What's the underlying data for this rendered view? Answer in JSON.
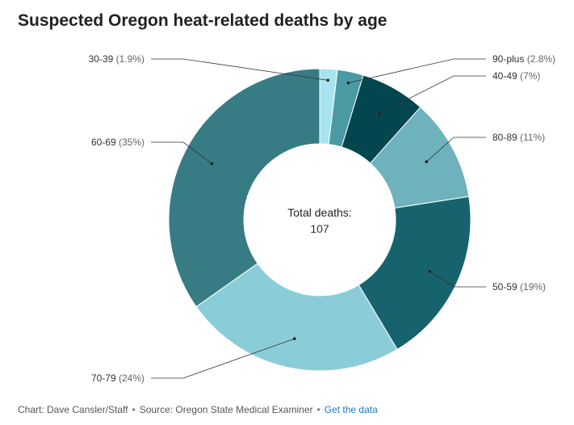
{
  "title": "Suspected Oregon heat-related deaths by age",
  "center": {
    "label": "Total deaths:",
    "value": "107"
  },
  "footer": {
    "credit": "Chart: Dave Cansler/Staff",
    "source": "Source: Oregon State Medical Examiner",
    "link_label": "Get the data",
    "separator": "•"
  },
  "chart_data": {
    "type": "pie",
    "donut": true,
    "total": 107,
    "slices": [
      {
        "label": "30-39",
        "pct_text": "(1.9%)",
        "value": 1.9,
        "color": "#a8e3f0",
        "label_side": "left"
      },
      {
        "label": "90-plus",
        "pct_text": "(2.8%)",
        "value": 2.8,
        "color": "#4a9aa3",
        "label_side": "right"
      },
      {
        "label": "40-49",
        "pct_text": "(7%)",
        "value": 7,
        "color": "#034650",
        "label_side": "right"
      },
      {
        "label": "80-89",
        "pct_text": "(11%)",
        "value": 11,
        "color": "#6db2bd",
        "label_side": "right"
      },
      {
        "label": "50-59",
        "pct_text": "(19%)",
        "value": 19,
        "color": "#16636d",
        "label_side": "right"
      },
      {
        "label": "70-79",
        "pct_text": "(24%)",
        "value": 24,
        "color": "#8acdd9",
        "label_side": "left"
      },
      {
        "label": "60-69",
        "pct_text": "(35%)",
        "value": 35,
        "color": "#377c85",
        "label_side": "left"
      }
    ]
  }
}
